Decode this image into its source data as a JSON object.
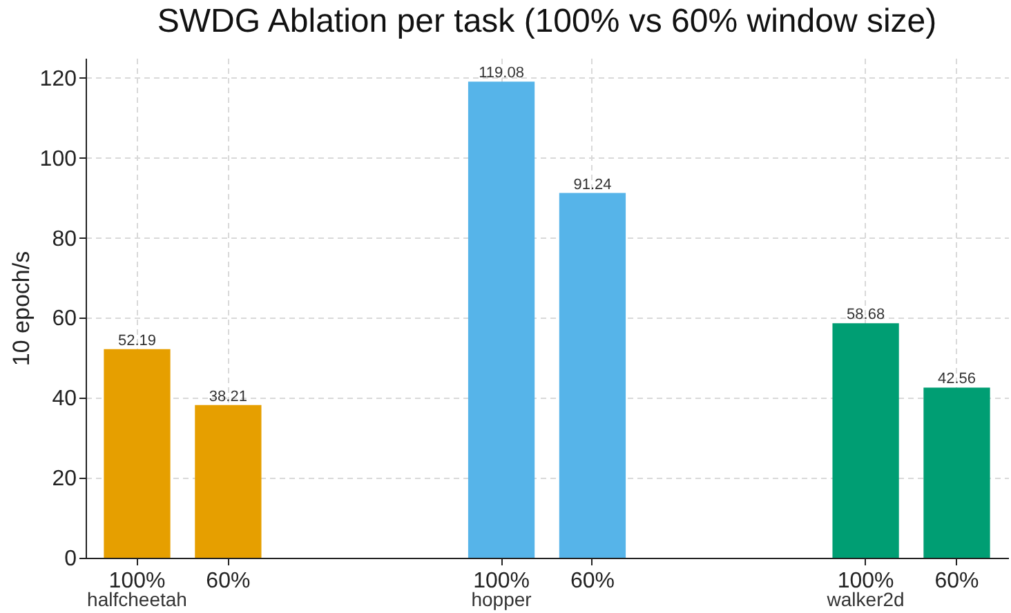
{
  "chart_data": {
    "type": "bar",
    "title": "SWDG Ablation per task (100% vs 60% window size)",
    "ylabel": "10 epoch/s",
    "categories": [
      "100%",
      "60%",
      null,
      null,
      "100%",
      "60%",
      null,
      null,
      "100%",
      "60%"
    ],
    "series": [
      {
        "name": "halfcheetah",
        "color": "#e69f00",
        "values": [
          52.19,
          38.21,
          null,
          null,
          null,
          null,
          null,
          null,
          null,
          null
        ]
      },
      {
        "name": "hopper",
        "color": "#56b4e9",
        "values": [
          null,
          null,
          null,
          null,
          119.08,
          91.24,
          null,
          null,
          null,
          null
        ]
      },
      {
        "name": "walker2d",
        "color": "#009e73",
        "values": [
          null,
          null,
          null,
          null,
          null,
          null,
          null,
          null,
          58.68,
          42.56
        ]
      }
    ],
    "ylim": [
      0,
      125
    ],
    "yticks": [
      0,
      20,
      40,
      60,
      80,
      100,
      120
    ],
    "grid": true,
    "data_labels": true,
    "legend": false
  }
}
